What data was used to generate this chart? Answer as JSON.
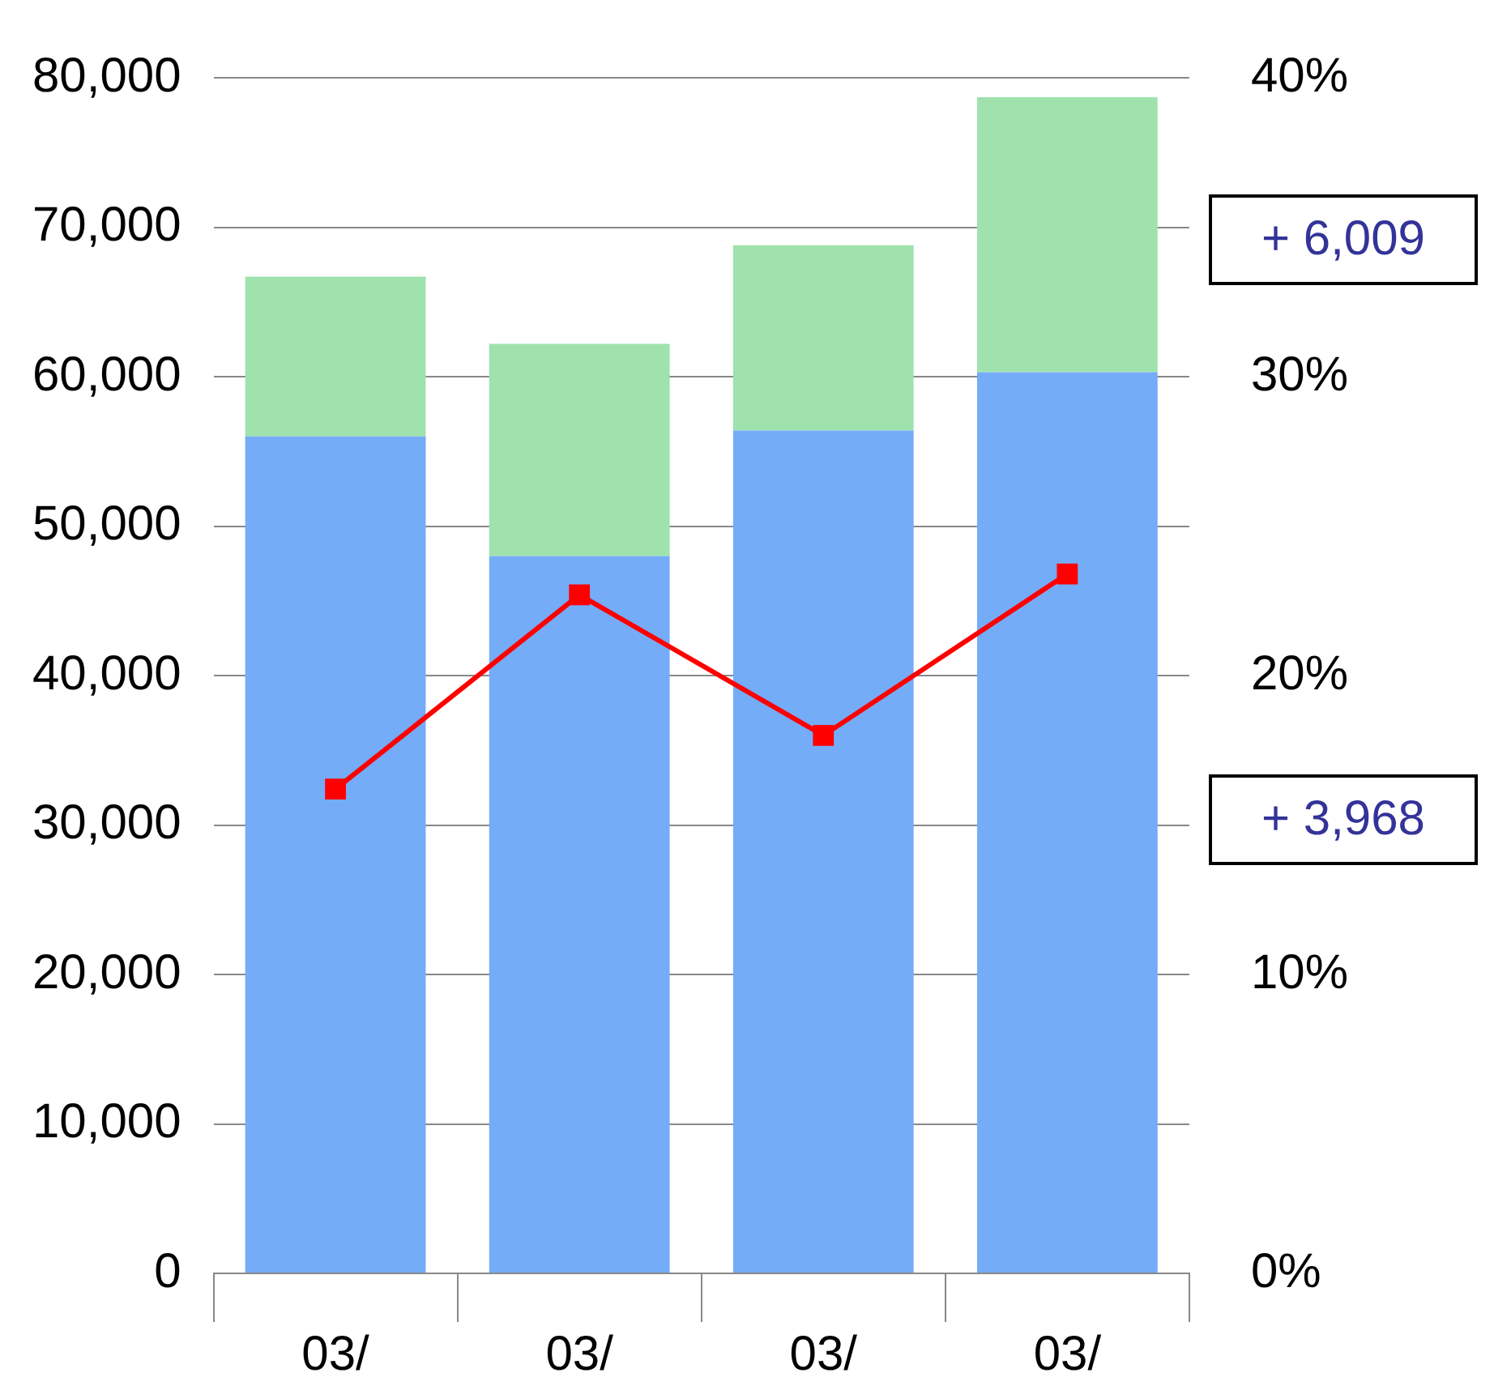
{
  "chart_data": {
    "type": "bar",
    "stacked": true,
    "categories": [
      "03/",
      "03/",
      "03/",
      "03/"
    ],
    "series": [
      {
        "color": "#74acf7",
        "values": [
          56000,
          48000,
          56400,
          60300
        ]
      },
      {
        "color": "#9fe2ad",
        "values": [
          10700,
          14200,
          12400,
          18400
        ]
      },
      {
        "type": "line",
        "axis": "y2",
        "color": "#ff0000",
        "marker": "square",
        "line_style": "solid",
        "values": [
          16.2,
          22.7,
          18.0,
          23.4
        ]
      }
    ],
    "ylim": [
      0,
      80000
    ],
    "yticks": [
      0,
      {
        "value": 10000,
        "label": "10,000"
      },
      {
        "value": 20000,
        "label": "20,000"
      },
      {
        "value": 30000,
        "label": "30,000"
      },
      {
        "value": 40000,
        "label": "40,000"
      },
      {
        "value": 50000,
        "label": "50,000"
      },
      {
        "value": 60000,
        "label": "60,000"
      },
      {
        "value": 70000,
        "label": "70,000"
      },
      {
        "value": 80000,
        "label": "80,000"
      }
    ],
    "y2lim": [
      0,
      40
    ],
    "y2ticks": [
      {
        "value": 0,
        "label": "0%"
      },
      {
        "value": 10,
        "label": "10%"
      },
      {
        "value": 20,
        "label": "20%"
      },
      {
        "value": 30,
        "label": "30%"
      },
      {
        "value": 40,
        "label": "40%"
      }
    ],
    "grid": "y",
    "legend": false,
    "annotations": [
      "+ 6,009",
      "+ 3,968"
    ]
  }
}
